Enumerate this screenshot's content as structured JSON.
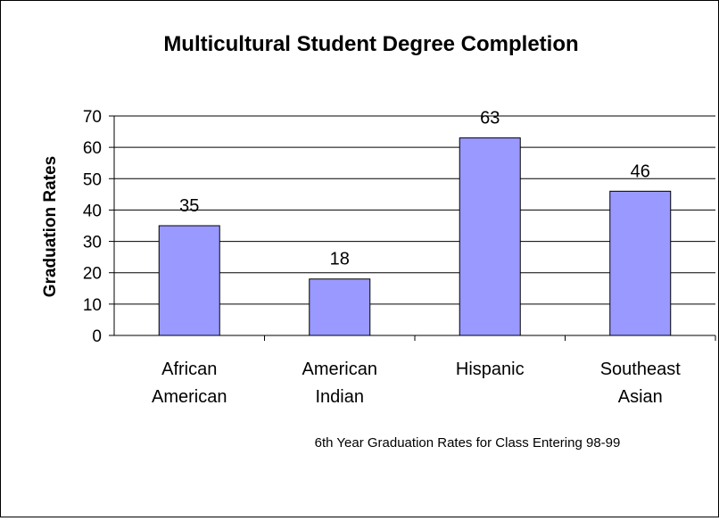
{
  "chart_data": {
    "type": "bar",
    "title": "Multicultural Student Degree Completion",
    "xlabel": "6th Year Graduation Rates for Class Entering 98-99",
    "ylabel": "Graduation Rates",
    "categories": [
      [
        "African",
        "American"
      ],
      [
        "American",
        "Indian"
      ],
      [
        "Hispanic"
      ],
      [
        "Southeast",
        "Asian"
      ]
    ],
    "values": [
      35,
      18,
      63,
      46
    ],
    "ylim": [
      0,
      70
    ],
    "yticks": [
      0,
      10,
      20,
      30,
      40,
      50,
      60,
      70
    ],
    "grid": true,
    "legend": "none",
    "bar_color": "#9999FF"
  }
}
